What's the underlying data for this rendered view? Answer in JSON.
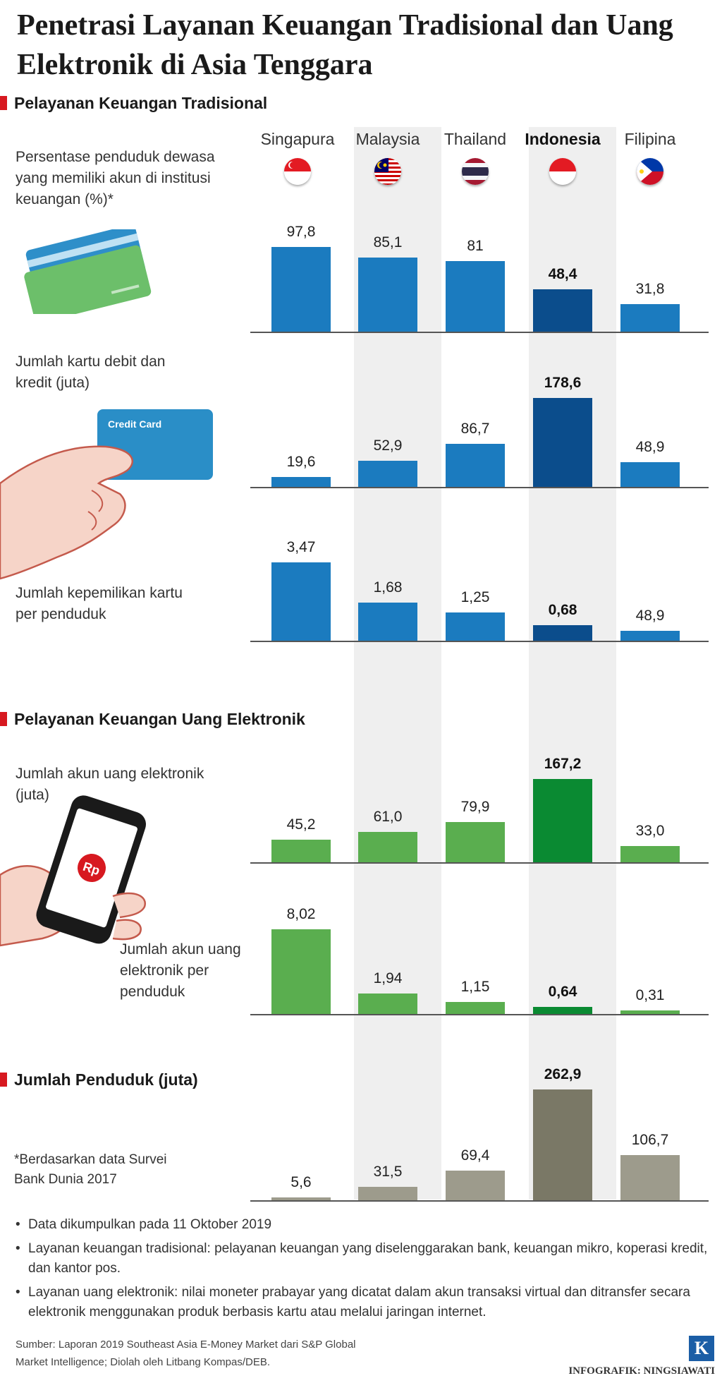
{
  "title": "Penetrasi Layanan Keuangan Tradisional dan Uang Elektronik di Asia Tenggara",
  "sections": {
    "traditional": "Pelayanan Keuangan Tradisional",
    "electronic": "Pelayanan Keuangan Uang Elektronik",
    "population": "Jumlah Penduduk (juta)"
  },
  "countries": [
    "Singapura",
    "Malaysia",
    "Thailand",
    "Indonesia",
    "Filipina"
  ],
  "highlight_country": "Indonesia",
  "flags": [
    "singapore-flag-icon",
    "malaysia-flag-icon",
    "thailand-flag-icon",
    "indonesia-flag-icon",
    "philippines-flag-icon"
  ],
  "labels": {
    "accounts": "Persentase penduduk dewasa yang memiliki akun di institusi keuangan (%)*",
    "cards": "Jumlah kartu debit dan kredit (juta)",
    "cards_per_capita": "Jumlah kepemilikan kartu per penduduk",
    "emoney_accounts": "Jumlah akun uang elektronik (juta)",
    "emoney_per_capita": "Jumlah akun uang elektronik per penduduk"
  },
  "illustrations": {
    "cards_image_text": "Credit Card",
    "phone_symbol": "Rp"
  },
  "footnote": "*Berdasarkan data Survei Bank Dunia 2017",
  "bullets": [
    "Data dikumpulkan pada 11 Oktober 2019",
    "Layanan keuangan tradisional: pelayanan keuangan yang diselenggarakan bank, keuangan mikro, koperasi kredit, dan kantor pos.",
    "Layanan uang elektronik: nilai moneter prabayar yang dicatat dalam akun transaksi virtual dan ditransfer secara elektronik menggunakan produk berbasis kartu atau melalui jaringan internet."
  ],
  "source": "Sumber: Laporan 2019 Southeast Asia E-Money Market dari S&P Global Market Intelligence; Diolah oleh Litbang Kompas/DEB.",
  "logo_letter": "K",
  "credit": "INFOGRAFIK: NINGSIAWATI",
  "colors": {
    "accent_red": "#d71920",
    "trad_bar": "#1b7bbf",
    "trad_bar_highlight": "#0b4d8c",
    "emoney_bar": "#5aae4f",
    "emoney_bar_highlight": "#0a8a32",
    "pop_bar": "#9d9b8c",
    "pop_bar_highlight": "#7a7866"
  },
  "chart_data": [
    {
      "type": "bar",
      "id": "accounts",
      "categories": [
        "Singapura",
        "Malaysia",
        "Thailand",
        "Indonesia",
        "Filipina"
      ],
      "values": [
        97.8,
        85.1,
        81,
        48.4,
        31.8
      ],
      "value_labels": [
        "97,8",
        "85,1",
        "81",
        "48,4",
        "31,8"
      ],
      "ylabel": "Persentase penduduk dewasa yang memiliki akun di institusi keuangan (%)*"
    },
    {
      "type": "bar",
      "id": "cards",
      "categories": [
        "Singapura",
        "Malaysia",
        "Thailand",
        "Indonesia",
        "Filipina"
      ],
      "values": [
        19.6,
        52.9,
        86.7,
        178.6,
        48.9
      ],
      "value_labels": [
        "19,6",
        "52,9",
        "86,7",
        "178,6",
        "48,9"
      ],
      "ylabel": "Jumlah kartu debit dan kredit (juta)"
    },
    {
      "type": "bar",
      "id": "cards_per_capita",
      "categories": [
        "Singapura",
        "Malaysia",
        "Thailand",
        "Indonesia",
        "Filipina"
      ],
      "values": [
        3.47,
        1.68,
        1.25,
        0.68,
        48.9
      ],
      "value_labels": [
        "3,47",
        "1,68",
        "1,25",
        "0,68",
        "48,9"
      ],
      "ylabel": "Jumlah kepemilikan kartu per penduduk"
    },
    {
      "type": "bar",
      "id": "emoney_accounts",
      "categories": [
        "Singapura",
        "Malaysia",
        "Thailand",
        "Indonesia",
        "Filipina"
      ],
      "values": [
        45.2,
        61.0,
        79.9,
        167.2,
        33.0
      ],
      "value_labels": [
        "45,2",
        "61,0",
        "79,9",
        "167,2",
        "33,0"
      ],
      "ylabel": "Jumlah akun uang elektronik (juta)"
    },
    {
      "type": "bar",
      "id": "emoney_per_capita",
      "categories": [
        "Singapura",
        "Malaysia",
        "Thailand",
        "Indonesia",
        "Filipina"
      ],
      "values": [
        8.02,
        1.94,
        1.15,
        0.64,
        0.31
      ],
      "value_labels": [
        "8,02",
        "1,94",
        "1,15",
        "0,64",
        "0,31"
      ],
      "ylabel": "Jumlah akun uang elektronik per penduduk"
    },
    {
      "type": "bar",
      "id": "population",
      "categories": [
        "Singapura",
        "Malaysia",
        "Thailand",
        "Indonesia",
        "Filipina"
      ],
      "values": [
        5.6,
        31.5,
        69.4,
        262.9,
        106.7
      ],
      "value_labels": [
        "5,6",
        "31,5",
        "69,4",
        "262,9",
        "106,7"
      ],
      "ylabel": "Jumlah Penduduk (juta)"
    }
  ]
}
